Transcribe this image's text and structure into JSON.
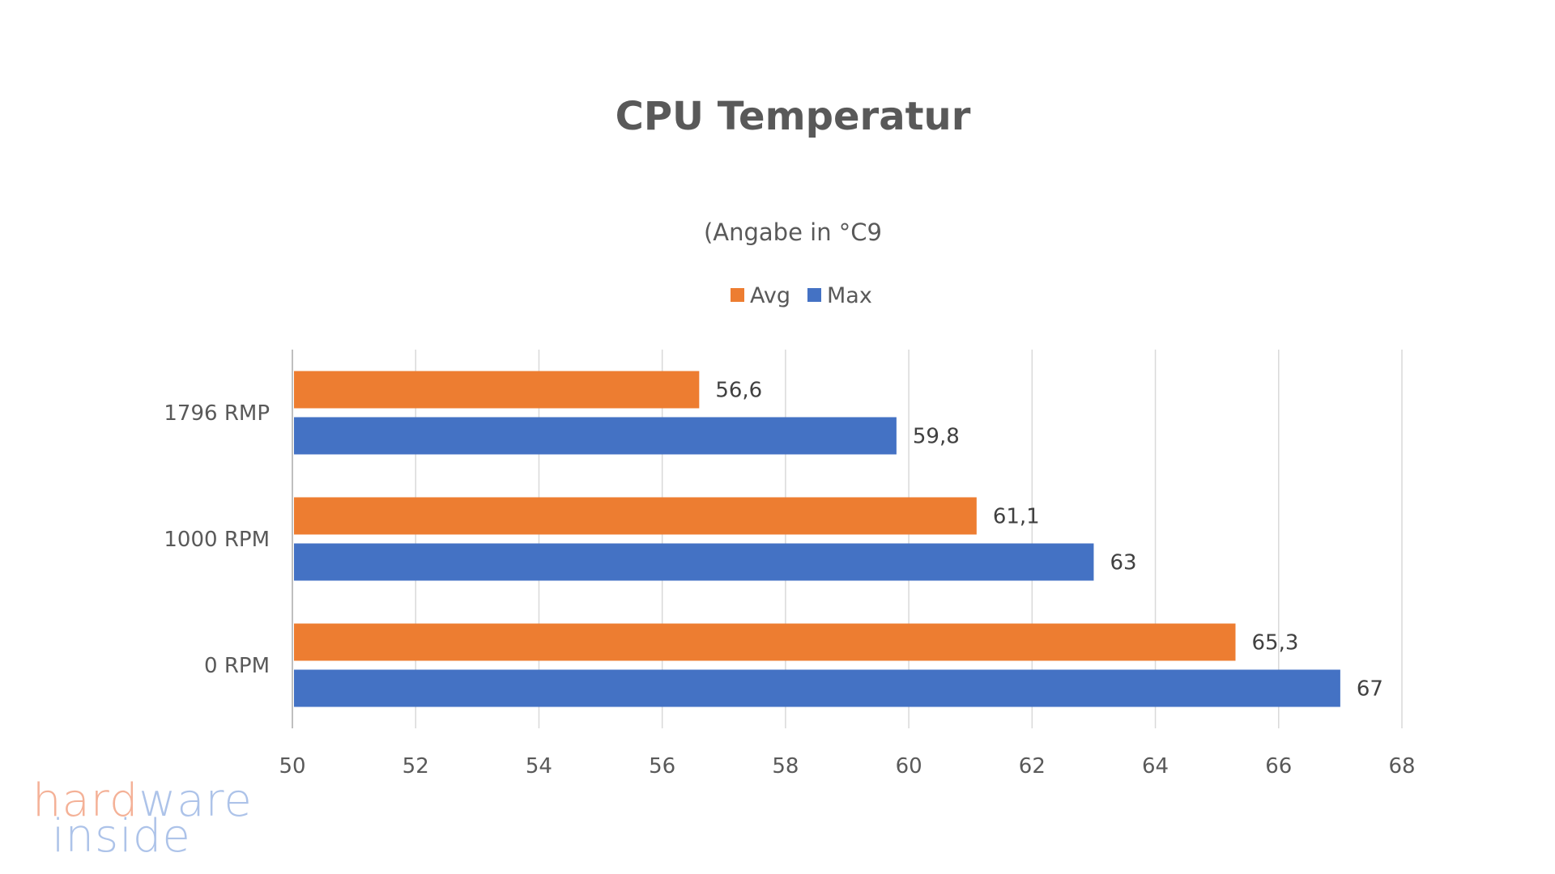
{
  "chart_data": {
    "type": "bar",
    "orientation": "horizontal",
    "title": "CPU Temperatur",
    "subtitle": "(Angabe in °C9",
    "categories": [
      "1796 RMP",
      "1000 RPM",
      "0 RPM"
    ],
    "series": [
      {
        "name": "Avg",
        "color": "#ED7D31",
        "values": [
          56.6,
          61.1,
          65.3
        ],
        "labels": [
          "56,6",
          "61,1",
          "65,3"
        ]
      },
      {
        "name": "Max",
        "color": "#4472C4",
        "values": [
          59.8,
          63,
          67
        ],
        "labels": [
          "59,8",
          "63",
          "67"
        ]
      }
    ],
    "xlim": [
      50,
      68
    ],
    "xticks": [
      50,
      52,
      54,
      56,
      58,
      60,
      62,
      64,
      66,
      68
    ],
    "grid": "vertical",
    "legend": "top-center",
    "xlabel": "",
    "ylabel": ""
  },
  "watermark": {
    "line1_a": "hard",
    "line1_b": "ware",
    "line2": "inside"
  }
}
